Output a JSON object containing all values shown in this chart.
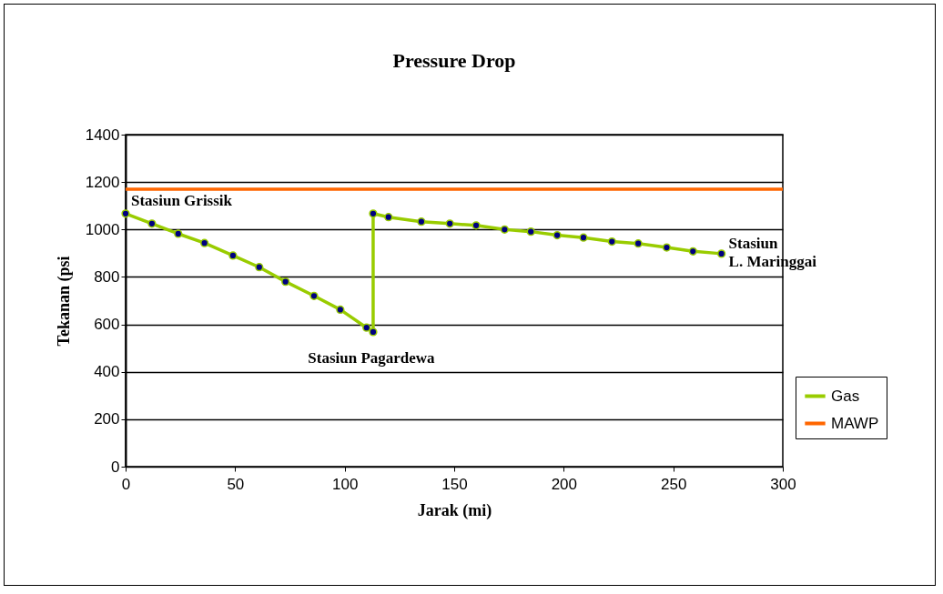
{
  "chart_data": {
    "type": "line",
    "title": "Pressure Drop",
    "xlabel": "Jarak (mi)",
    "ylabel": "Tekanan (psi",
    "xlim": [
      0,
      300
    ],
    "xticks": [
      0,
      50,
      100,
      150,
      200,
      250,
      300
    ],
    "ylim": [
      0,
      1400
    ],
    "yticks": [
      0,
      200,
      400,
      600,
      800,
      1000,
      1200,
      1400
    ],
    "grid": "y",
    "legend": "right",
    "marker": "circle",
    "line_style": "solid",
    "series": [
      {
        "name": "Gas",
        "color": "#99cc00",
        "x": [
          0,
          12,
          24,
          36,
          49,
          61,
          73,
          86,
          98,
          110,
          113,
          113,
          120,
          135,
          148,
          160,
          173,
          185,
          197,
          209,
          222,
          234,
          247,
          259,
          272
        ],
        "values": [
          1067,
          1025,
          982,
          943,
          890,
          841,
          780,
          720,
          662,
          586,
          568,
          1067,
          1052,
          1033,
          1025,
          1017,
          1000,
          991,
          976,
          966,
          949,
          941,
          924,
          908,
          898
        ]
      },
      {
        "name": "MAWP",
        "color": "#ff6600",
        "marker": "none",
        "x": [
          0,
          300
        ],
        "values": [
          1170,
          1170
        ]
      }
    ],
    "annotations": [
      {
        "text": "Stasiun Grissik",
        "x": 0,
        "y": 1067
      },
      {
        "text": "Stasiun Pagardewa",
        "x": 113,
        "y": 568
      },
      {
        "text": "Stasiun\nL. Maringgai",
        "x": 272,
        "y": 898
      }
    ]
  }
}
